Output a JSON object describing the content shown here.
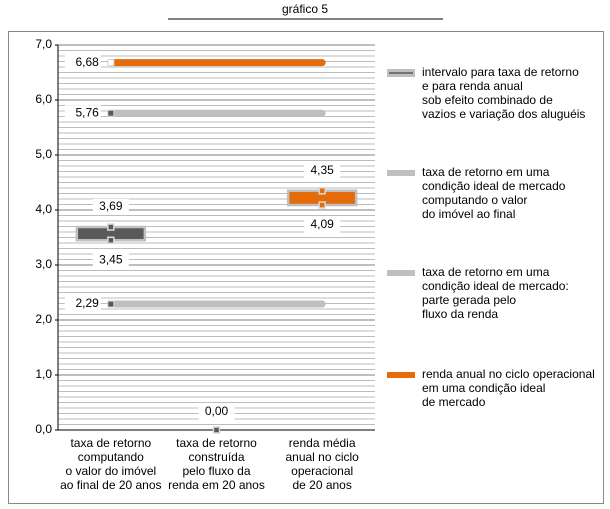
{
  "chart_data": {
    "type": "range-line",
    "title": "gráfico 5",
    "categories": [
      "taxa de retorno\ncomputando\no valor do imóvel\nao final de 20 anos",
      "taxa de retorno\nconstruída\npelo fluxo da\nrenda em 20 anos",
      "renda média\nanual no ciclo\noperacional\nde 20 anos"
    ],
    "ylim": [
      0,
      7
    ],
    "yticks": [
      {
        "value": 0,
        "label": "0,0"
      },
      {
        "value": 1,
        "label": "1,0"
      },
      {
        "value": 2,
        "label": "2,0"
      },
      {
        "value": 3,
        "label": "3,0"
      },
      {
        "value": 4,
        "label": "4,0"
      },
      {
        "value": 5,
        "label": "5,0"
      },
      {
        "value": 6,
        "label": "6,0"
      },
      {
        "value": 7,
        "label": "7,0"
      }
    ],
    "grid": true,
    "series": [
      {
        "name": "intervalo para taxa de retorno\ne para renda anual\nsob efeito combinado de\nvazios e variação dos aluguéis",
        "color": "#595959",
        "low": [
          3.45,
          0.0,
          4.09
        ],
        "high": [
          3.69,
          0.0,
          4.35
        ],
        "low_labels": [
          "3,45",
          "0,00",
          "4,09"
        ],
        "high_labels": [
          "3,69",
          null,
          "4,35"
        ],
        "point_colors": [
          "#595959",
          "#595959",
          "#e46c0a"
        ]
      },
      {
        "name": "taxa de retorno em uma\ncondição ideal de mercado\ncomputando o valor\ndo imóvel ao final",
        "color": "#bfbfbf",
        "value": 5.76,
        "value_label": "5,76"
      },
      {
        "name": "taxa de retorno em uma\ncondição ideal de mercado:\nparte gerada pelo\nfluxo da renda",
        "color": "#bfbfbf",
        "value": 2.29,
        "value_label": "2,29"
      },
      {
        "name": "renda anual no ciclo operacional\nem uma condição ideal\nde mercado",
        "color": "#e46c0a",
        "value": 6.68,
        "value_label": "6,68"
      }
    ]
  }
}
